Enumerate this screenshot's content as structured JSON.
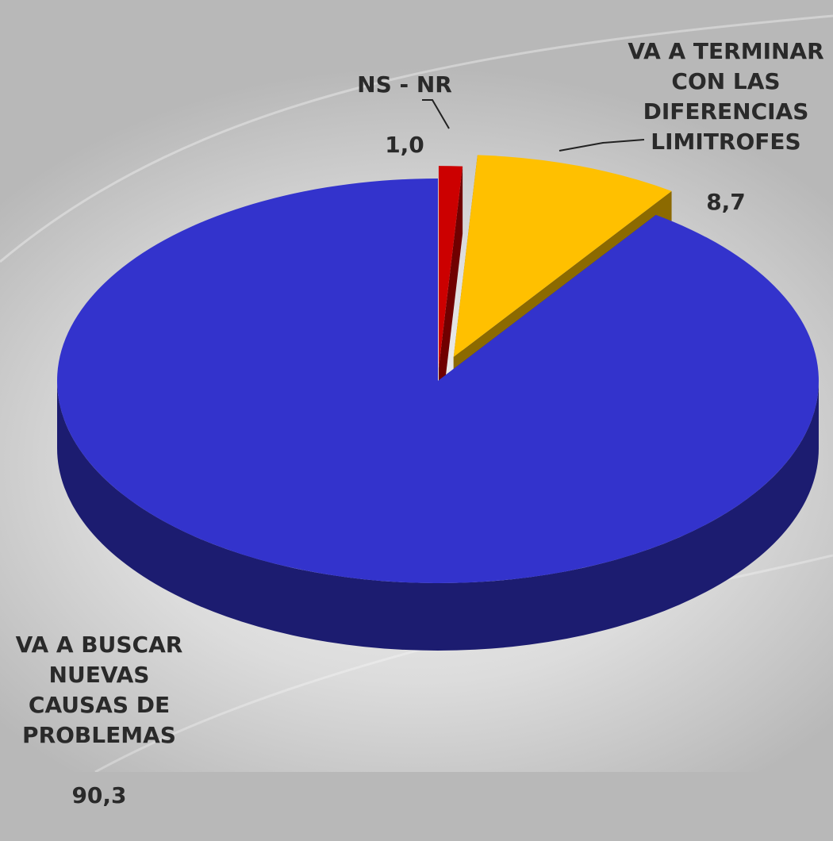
{
  "chart_data": {
    "type": "pie",
    "categories": [
      "NS - NR",
      "VA A TERMINAR\nCON LAS\nDIFERENCIAS\nLIMITROFES",
      "VA A BUSCAR\nNUEVAS\nCAUSAS DE\nPROBLEMAS"
    ],
    "values": [
      1.0,
      8.7,
      90.3
    ],
    "value_labels": [
      "1,0",
      "8,7",
      "90,3"
    ],
    "colors": [
      "#cc0000",
      "#ffc000",
      "#3333cc"
    ]
  }
}
